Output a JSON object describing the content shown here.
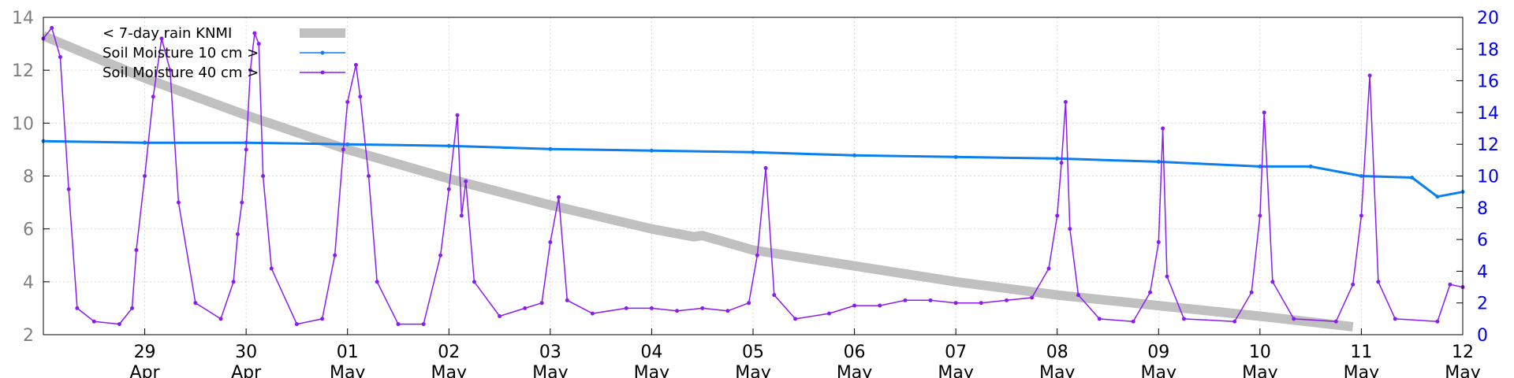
{
  "chart_data": {
    "type": "line",
    "title": "",
    "x_tick_labels": [
      {
        "day": "29",
        "month": "Apr"
      },
      {
        "day": "30",
        "month": "Apr"
      },
      {
        "day": "01",
        "month": "May"
      },
      {
        "day": "02",
        "month": "May"
      },
      {
        "day": "03",
        "month": "May"
      },
      {
        "day": "04",
        "month": "May"
      },
      {
        "day": "05",
        "month": "May"
      },
      {
        "day": "06",
        "month": "May"
      },
      {
        "day": "07",
        "month": "May"
      },
      {
        "day": "08",
        "month": "May"
      },
      {
        "day": "09",
        "month": "May"
      },
      {
        "day": "10",
        "month": "May"
      },
      {
        "day": "11",
        "month": "May"
      },
      {
        "day": "12",
        "month": "May"
      }
    ],
    "xlim": [
      "2024-04-28T00:00",
      "2024-05-12T00:00"
    ],
    "y_left": {
      "ylim": [
        2,
        14
      ],
      "ticks": [
        2,
        4,
        6,
        8,
        10,
        12,
        14
      ],
      "color": "#808080"
    },
    "y_right": {
      "ylim": [
        0,
        20
      ],
      "ticks": [
        0,
        2,
        4,
        6,
        8,
        10,
        12,
        14,
        16,
        18,
        20
      ],
      "color": "#0000ee"
    },
    "grid": true,
    "legend_position": "top-left",
    "series": [
      {
        "name": "< 7-day rain KNMI",
        "axis": "left",
        "color": "#c0c0c0",
        "style": "thick-line",
        "points": [
          [
            "04-28T00:00",
            13.3
          ],
          [
            "04-29T00:00",
            11.7
          ],
          [
            "04-30T00:00",
            10.3
          ],
          [
            "05-01T00:00",
            9.0
          ],
          [
            "05-02T00:00",
            7.9
          ],
          [
            "05-03T00:00",
            6.9
          ],
          [
            "05-04T00:00",
            6.0
          ],
          [
            "05-04T10:00",
            5.7
          ],
          [
            "05-04T12:00",
            5.75
          ],
          [
            "05-05T00:00",
            5.2
          ],
          [
            "05-06T00:00",
            4.6
          ],
          [
            "05-07T00:00",
            4.0
          ],
          [
            "05-08T00:00",
            3.5
          ],
          [
            "05-09T00:00",
            3.1
          ],
          [
            "05-10T00:00",
            2.7
          ],
          [
            "05-10T22:00",
            2.3
          ]
        ]
      },
      {
        "name": "Soil Moisture 10 cm >",
        "axis": "right",
        "color": "#0a7ff0",
        "style": "line-points",
        "points": [
          [
            "04-28T00:00",
            12.2
          ],
          [
            "04-29T00:00",
            12.1
          ],
          [
            "04-30T00:00",
            12.1
          ],
          [
            "05-01T00:00",
            12.0
          ],
          [
            "05-02T00:00",
            11.9
          ],
          [
            "05-03T00:00",
            11.7
          ],
          [
            "05-04T00:00",
            11.6
          ],
          [
            "05-05T00:00",
            11.5
          ],
          [
            "05-06T00:00",
            11.3
          ],
          [
            "05-07T00:00",
            11.2
          ],
          [
            "05-08T00:00",
            11.1
          ],
          [
            "05-09T00:00",
            10.9
          ],
          [
            "05-10T00:00",
            10.6
          ],
          [
            "05-10T12:00",
            10.6
          ],
          [
            "05-11T00:00",
            10.0
          ],
          [
            "05-11T12:00",
            9.9
          ],
          [
            "05-11T18:00",
            8.7
          ],
          [
            "05-12T00:00",
            9.0
          ]
        ]
      },
      {
        "name": "Soil Moisture 40 cm >",
        "axis": "left",
        "color": "#8a1cf0",
        "style": "line-points",
        "points": [
          [
            "04-28T00:00",
            13.2
          ],
          [
            "04-28T02:00",
            13.6
          ],
          [
            "04-28T04:00",
            12.5
          ],
          [
            "04-28T06:00",
            7.5
          ],
          [
            "04-28T08:00",
            3.0
          ],
          [
            "04-28T12:00",
            2.5
          ],
          [
            "04-28T18:00",
            2.4
          ],
          [
            "04-28T21:00",
            3.0
          ],
          [
            "04-28T22:00",
            5.2
          ],
          [
            "04-29T00:00",
            8.0
          ],
          [
            "04-29T02:00",
            11.0
          ],
          [
            "04-29T04:00",
            13.2
          ],
          [
            "04-29T06:00",
            12.0
          ],
          [
            "04-29T08:00",
            7.0
          ],
          [
            "04-29T12:00",
            3.2
          ],
          [
            "04-29T18:00",
            2.6
          ],
          [
            "04-29T21:00",
            4.0
          ],
          [
            "04-29T22:00",
            5.8
          ],
          [
            "04-29T23:00",
            7.0
          ],
          [
            "04-30T00:00",
            9.0
          ],
          [
            "04-30T01:00",
            12.0
          ],
          [
            "04-30T02:00",
            13.4
          ],
          [
            "04-30T03:00",
            13.0
          ],
          [
            "04-30T04:00",
            8.0
          ],
          [
            "04-30T06:00",
            4.5
          ],
          [
            "04-30T12:00",
            2.4
          ],
          [
            "04-30T18:00",
            2.6
          ],
          [
            "04-30T21:00",
            5.0
          ],
          [
            "04-30T23:00",
            9.0
          ],
          [
            "05-01T00:00",
            10.8
          ],
          [
            "05-01T02:00",
            12.2
          ],
          [
            "05-01T03:00",
            11.0
          ],
          [
            "05-01T05:00",
            8.0
          ],
          [
            "05-01T07:00",
            4.0
          ],
          [
            "05-01T12:00",
            2.4
          ],
          [
            "05-01T18:00",
            2.4
          ],
          [
            "05-01T22:00",
            5.0
          ],
          [
            "05-02T00:00",
            7.5
          ],
          [
            "05-02T02:00",
            10.3
          ],
          [
            "05-02T03:00",
            6.5
          ],
          [
            "05-02T04:00",
            7.8
          ],
          [
            "05-02T06:00",
            4.0
          ],
          [
            "05-02T12:00",
            2.7
          ],
          [
            "05-02T18:00",
            3.0
          ],
          [
            "05-02T22:00",
            3.2
          ],
          [
            "05-03T00:00",
            5.5
          ],
          [
            "05-03T02:00",
            7.2
          ],
          [
            "05-03T04:00",
            3.3
          ],
          [
            "05-03T10:00",
            2.8
          ],
          [
            "05-03T18:00",
            3.0
          ],
          [
            "05-04T00:00",
            3.0
          ],
          [
            "05-04T06:00",
            2.9
          ],
          [
            "05-04T12:00",
            3.0
          ],
          [
            "05-04T18:00",
            2.9
          ],
          [
            "05-04T23:00",
            3.2
          ],
          [
            "05-05T01:00",
            5.0
          ],
          [
            "05-05T03:00",
            8.3
          ],
          [
            "05-05T05:00",
            3.5
          ],
          [
            "05-05T10:00",
            2.6
          ],
          [
            "05-05T18:00",
            2.8
          ],
          [
            "05-06T00:00",
            3.1
          ],
          [
            "05-06T06:00",
            3.1
          ],
          [
            "05-06T12:00",
            3.3
          ],
          [
            "05-06T18:00",
            3.3
          ],
          [
            "05-07T00:00",
            3.2
          ],
          [
            "05-07T06:00",
            3.2
          ],
          [
            "05-07T12:00",
            3.3
          ],
          [
            "05-07T18:00",
            3.4
          ],
          [
            "05-07T22:00",
            4.5
          ],
          [
            "05-08T00:00",
            6.5
          ],
          [
            "05-08T01:00",
            8.5
          ],
          [
            "05-08T02:00",
            10.8
          ],
          [
            "05-08T03:00",
            6.0
          ],
          [
            "05-08T05:00",
            3.5
          ],
          [
            "05-08T10:00",
            2.6
          ],
          [
            "05-08T18:00",
            2.5
          ],
          [
            "05-08T22:00",
            3.6
          ],
          [
            "05-09T00:00",
            5.5
          ],
          [
            "05-09T01:00",
            9.8
          ],
          [
            "05-09T02:00",
            4.2
          ],
          [
            "05-09T06:00",
            2.6
          ],
          [
            "05-09T18:00",
            2.5
          ],
          [
            "05-09T22:00",
            3.6
          ],
          [
            "05-10T00:00",
            6.5
          ],
          [
            "05-10T01:00",
            10.4
          ],
          [
            "05-10T03:00",
            4.0
          ],
          [
            "05-10T08:00",
            2.6
          ],
          [
            "05-10T18:00",
            2.5
          ],
          [
            "05-10T22:00",
            3.9
          ],
          [
            "05-11T00:00",
            6.5
          ],
          [
            "05-11T02:00",
            11.8
          ],
          [
            "05-11T04:00",
            4.0
          ],
          [
            "05-11T08:00",
            2.6
          ],
          [
            "05-11T18:00",
            2.5
          ],
          [
            "05-11T21:00",
            3.9
          ],
          [
            "05-12T00:00",
            3.8
          ]
        ]
      }
    ]
  }
}
